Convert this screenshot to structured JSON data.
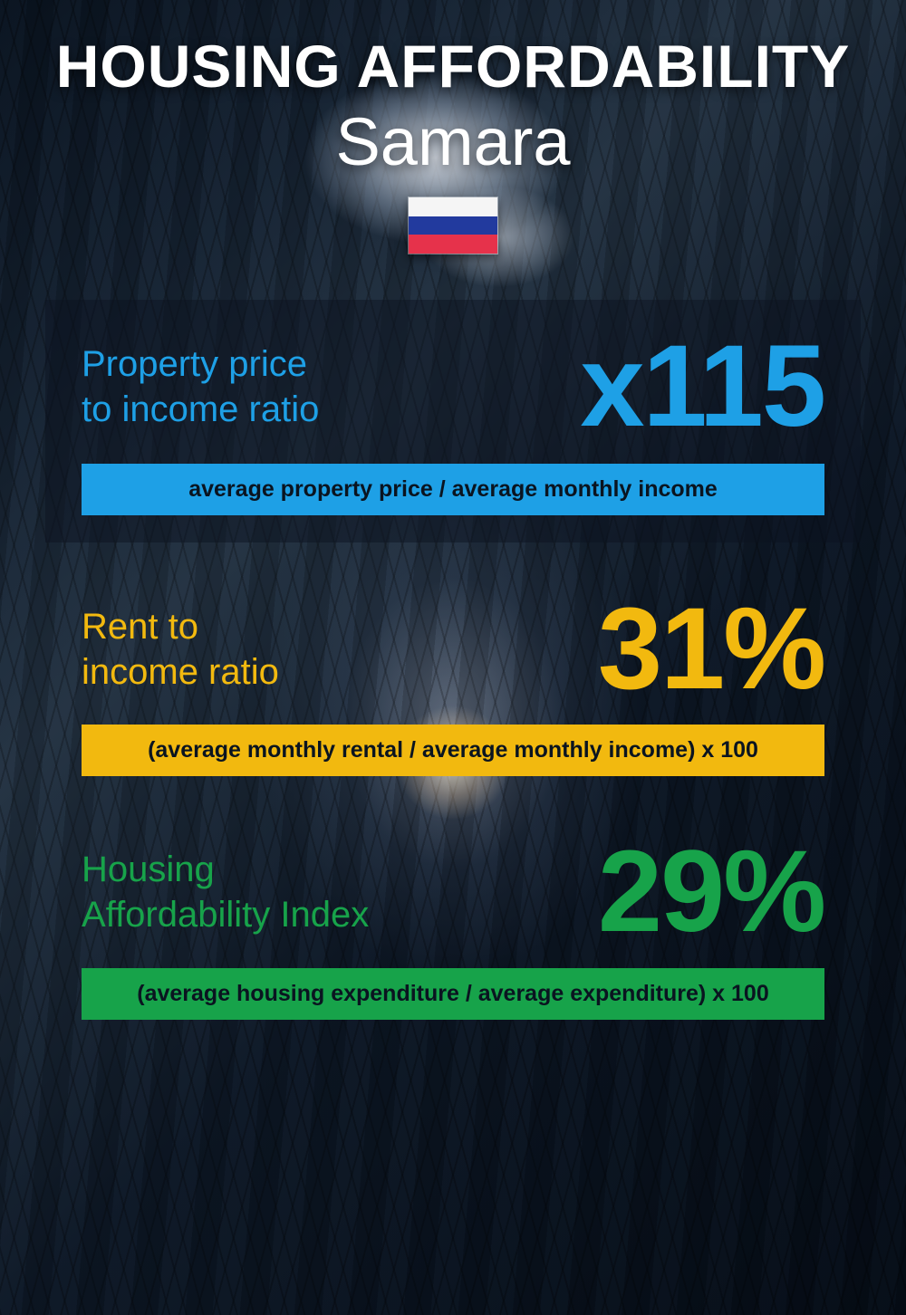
{
  "header": {
    "title": "HOUSING AFFORDABILITY",
    "title_fontsize": 66,
    "subtitle": "Samara",
    "subtitle_fontsize": 74,
    "title_color": "#ffffff",
    "flag_stripes": [
      "#f5f5f5",
      "#223a9e",
      "#e6324b"
    ]
  },
  "metrics": [
    {
      "label": "Property price\nto income ratio",
      "label_color": "#1ea0e6",
      "label_fontsize": 40,
      "value": "x115",
      "value_color": "#1ea0e6",
      "value_fontsize": 128,
      "formula": "average property price / average monthly income",
      "formula_bg": "#1ea0e6",
      "formula_color": "#0a1420",
      "formula_fontsize": 25,
      "has_card_bg": true
    },
    {
      "label": "Rent to\nincome ratio",
      "label_color": "#f2b90f",
      "label_fontsize": 40,
      "value": "31%",
      "value_color": "#f2b90f",
      "value_fontsize": 128,
      "formula": "(average monthly rental / average monthly income) x 100",
      "formula_bg": "#f2b90f",
      "formula_color": "#0a1420",
      "formula_fontsize": 25,
      "has_card_bg": false
    },
    {
      "label": "Housing\nAffordability Index",
      "label_color": "#17a34a",
      "label_fontsize": 40,
      "value": "29%",
      "value_color": "#17a34a",
      "value_fontsize": 128,
      "formula": "(average housing expenditure / average expenditure) x 100",
      "formula_bg": "#17a34a",
      "formula_color": "#0a1420",
      "formula_fontsize": 25,
      "has_card_bg": false
    }
  ]
}
